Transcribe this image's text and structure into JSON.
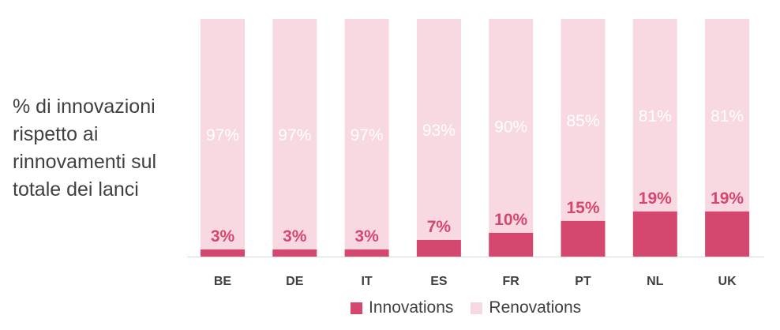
{
  "side_title": "% di innovazioni rispetto ai rinnovamenti sul totale dei lanci",
  "colors": {
    "innovations": "#d6476f",
    "renovations": "#f8d9e1",
    "innovation_label": "#d6476f",
    "renovation_label": "#ffffff",
    "category_label": "#404040",
    "axis": "#d9d9d9"
  },
  "chart_data": {
    "type": "bar",
    "stacked": true,
    "categories": [
      "BE",
      "DE",
      "IT",
      "ES",
      "FR",
      "PT",
      "NL",
      "UK"
    ],
    "series": [
      {
        "name": "Innovations",
        "values": [
          3,
          3,
          3,
          7,
          10,
          15,
          19,
          19
        ],
        "labels": [
          "3%",
          "3%",
          "3%",
          "7%",
          "10%",
          "15%",
          "19%",
          "19%"
        ]
      },
      {
        "name": "Renovations",
        "values": [
          97,
          97,
          97,
          93,
          90,
          85,
          81,
          81
        ],
        "labels": [
          "97%",
          "97%",
          "97%",
          "93%",
          "90%",
          "85%",
          "81%",
          "81%"
        ]
      }
    ],
    "ylim": [
      0,
      100
    ],
    "legend_position": "bottom",
    "grid": false
  }
}
